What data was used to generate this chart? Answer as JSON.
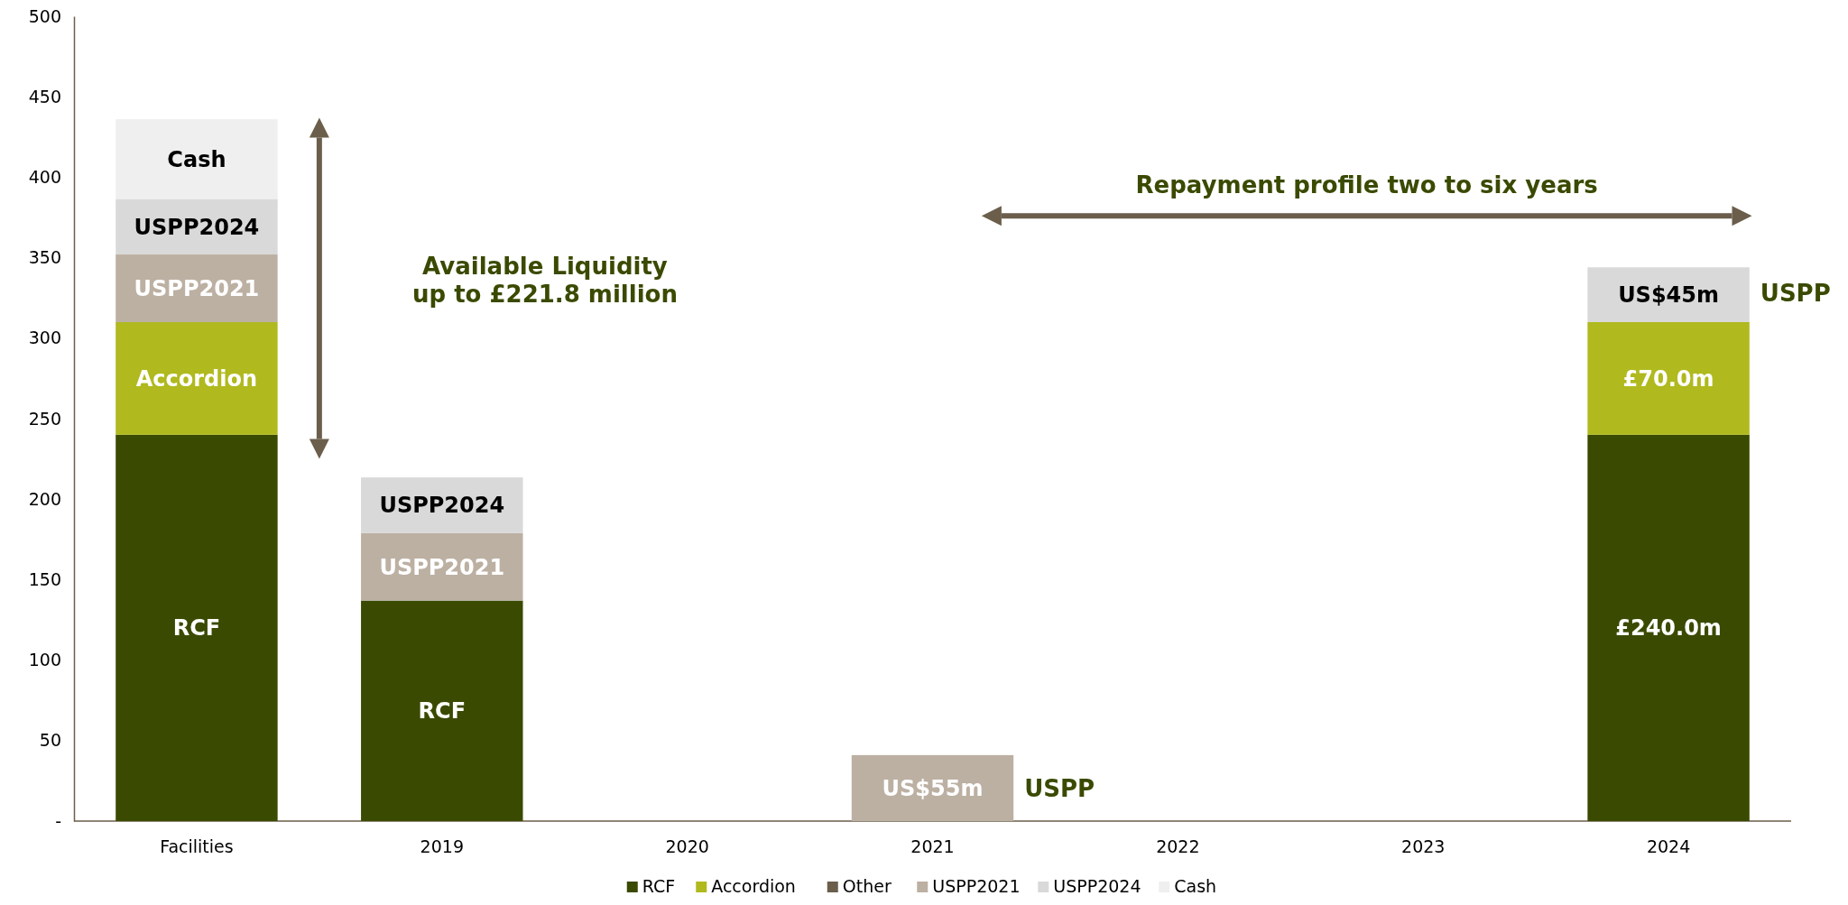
{
  "chart_data": {
    "type": "bar",
    "stacked": true,
    "categories": [
      "Facilities",
      "2019",
      "2020",
      "2021",
      "2022",
      "2023",
      "2024"
    ],
    "series": [
      {
        "name": "RCF",
        "color": "#3a4a00",
        "values": [
          240,
          137,
          null,
          null,
          null,
          null,
          240
        ],
        "value_labels": [
          "RCF",
          "RCF",
          null,
          null,
          null,
          null,
          "£240.0m"
        ]
      },
      {
        "name": "Accordion",
        "color": "#b0b91e",
        "values": [
          70,
          null,
          null,
          null,
          null,
          null,
          70
        ],
        "value_labels": [
          "Accordion",
          null,
          null,
          null,
          null,
          null,
          "£70.0m"
        ]
      },
      {
        "name": "Other",
        "color": "#6b5e4b",
        "values": [
          null,
          null,
          null,
          null,
          null,
          null,
          null
        ]
      },
      {
        "name": "USPP2021",
        "color": "#bcb0a3",
        "values": [
          42,
          42,
          null,
          41,
          null,
          null,
          null
        ],
        "value_labels": [
          "USPP2021",
          "USPP2021",
          null,
          "US$55m",
          null,
          null,
          null
        ]
      },
      {
        "name": "USPP2024",
        "color": "#d9d9d9",
        "values": [
          34.5,
          34.5,
          null,
          null,
          null,
          null,
          34
        ],
        "value_labels": [
          "USPP2024",
          "USPP2024",
          null,
          null,
          null,
          null,
          "US$45m"
        ]
      },
      {
        "name": "Cash",
        "color": "#efefef",
        "values": [
          49.5,
          null,
          null,
          null,
          null,
          null,
          null
        ],
        "value_labels": [
          "Cash",
          null,
          null,
          null,
          null,
          null,
          null
        ]
      }
    ],
    "ylim": [
      0,
      500
    ],
    "yticks": [
      {
        "value": 0,
        "label": "-"
      },
      50,
      100,
      150,
      200,
      250,
      300,
      350,
      400,
      450,
      500
    ],
    "grid": false,
    "legend": "bottom",
    "annotations": [
      "Available Liquidity\nup to £221.8 million",
      "Repayment profile two to six years",
      "USPP",
      "USPP"
    ]
  }
}
